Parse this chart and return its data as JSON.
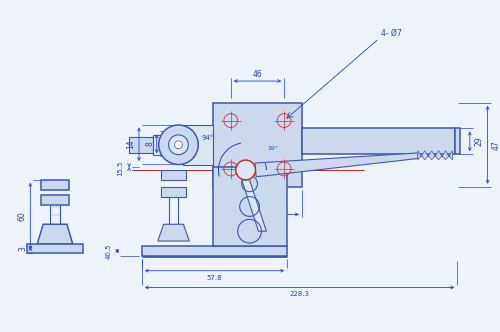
{
  "bg_color": "#eef2fb",
  "line_color": "#3a5aaa",
  "red_color": "#cc2222",
  "dim_color": "#2244cc",
  "fill_color": "#ccd8ee",
  "fill_light": "#dde6f5",
  "fill_dark": "#aabbd8"
}
